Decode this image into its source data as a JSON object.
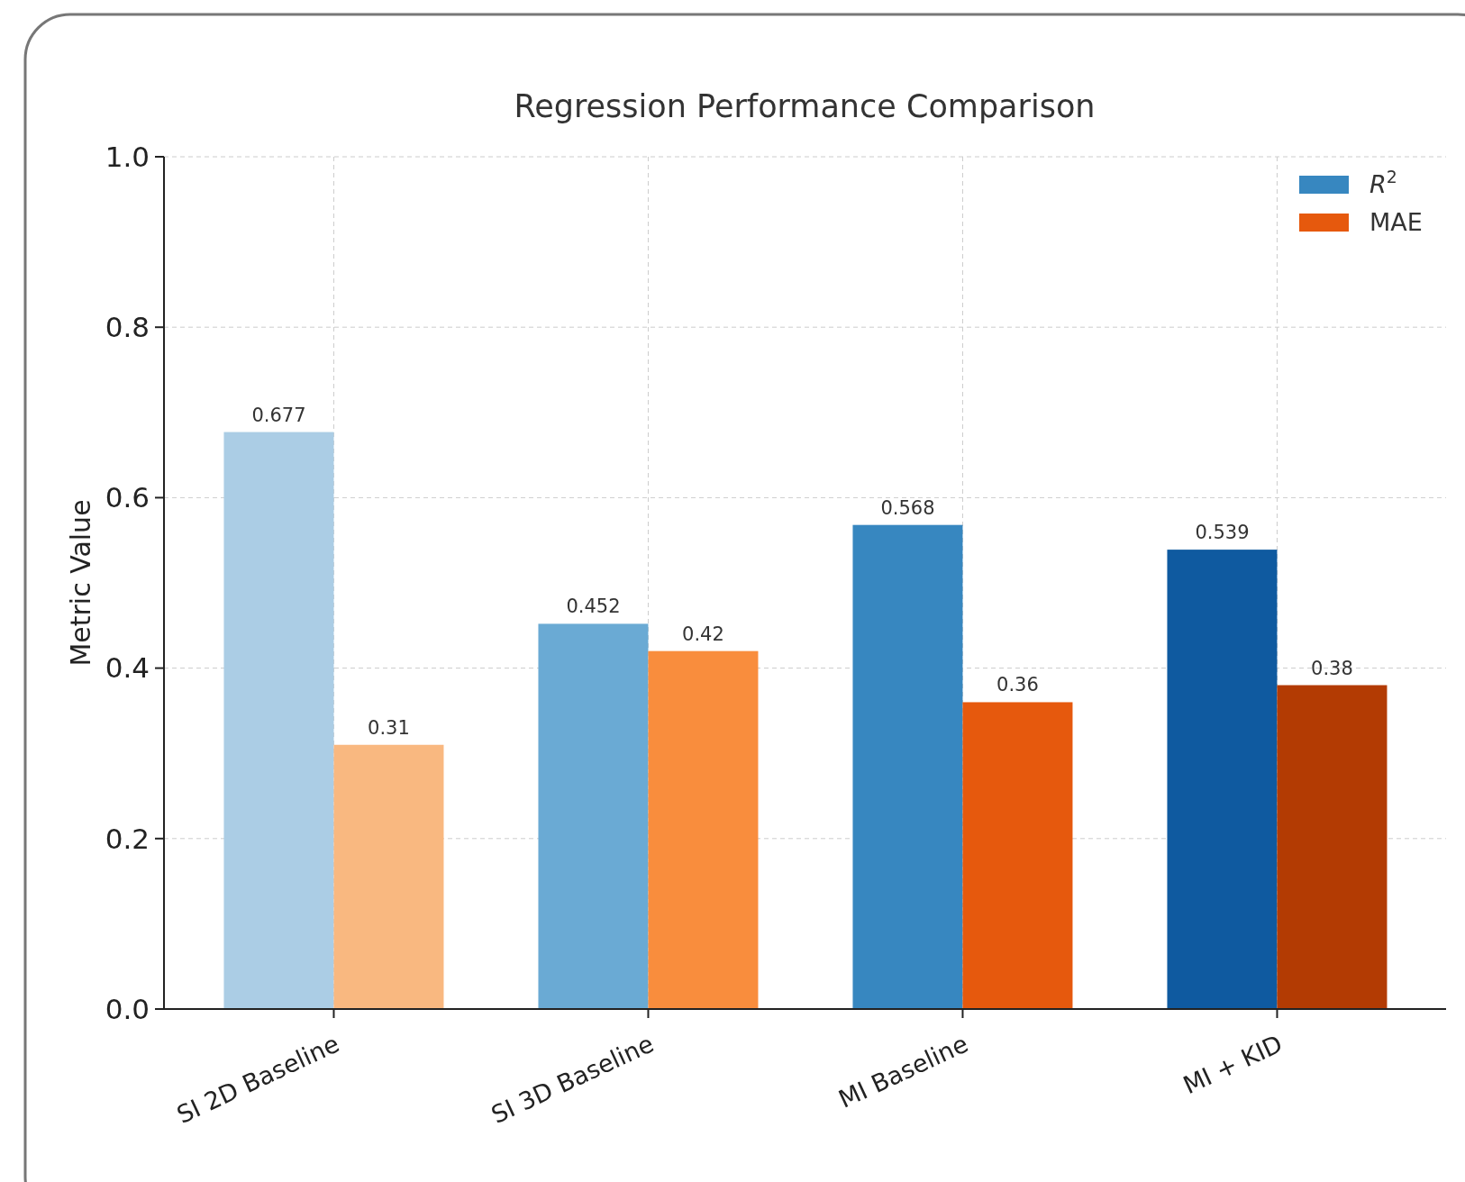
{
  "chart_data": {
    "type": "bar",
    "title": "Regression Performance Comparison",
    "ylabel": "Metric Value",
    "categories": [
      "SI 2D Baseline",
      "SI 3D Baseline",
      "MI Baseline",
      "MI + KID"
    ],
    "series": [
      {
        "name": "R$^{2}$",
        "color": "#3787c0",
        "colors": [
          "#abcde5",
          "#6aaad4",
          "#3787c0",
          "#0f5aa0"
        ],
        "values": [
          0.677,
          0.452,
          0.568,
          0.539
        ]
      },
      {
        "name": "MAE",
        "color": "#e6590d",
        "colors": [
          "#f9b880",
          "#f98d3d",
          "#e6590d",
          "#b33b03"
        ],
        "values": [
          0.31,
          0.42,
          0.36,
          0.38
        ]
      }
    ],
    "ylim": [
      0,
      1
    ],
    "yticks": [
      {
        "value": 0,
        "label": "0.0"
      },
      {
        "value": 0.2,
        "label": "0.2"
      },
      {
        "value": 0.4,
        "label": "0.4"
      },
      {
        "value": 0.6,
        "label": "0.6"
      },
      {
        "value": 0.8,
        "label": "0.8"
      },
      {
        "value": 1,
        "label": "1.0"
      }
    ],
    "grid": true,
    "legend": "top right",
    "data_labels": true
  }
}
